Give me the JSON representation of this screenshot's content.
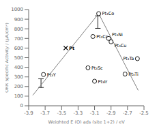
{
  "chart_data": {
    "type": "scatter",
    "xlabel": "Weighted E (O) ads (site 1+2) / eV",
    "ylabel": "ORR Specific Activity / (μA/cm²)",
    "xlim": [
      -3.9,
      -2.5
    ],
    "ylim": [
      0,
      1000
    ],
    "xticks": [
      -3.9,
      -3.7,
      -3.5,
      -3.3,
      -3.1,
      -2.9,
      -2.7,
      -2.5
    ],
    "yticks": [
      0,
      100,
      200,
      300,
      400,
      500,
      600,
      700,
      800,
      900,
      1000
    ],
    "series": [
      {
        "type": "line",
        "color": "gray",
        "x": [
          -3.85,
          -3.05
        ],
        "values": [
          110,
          958
        ]
      },
      {
        "type": "line",
        "color": "gray",
        "x": [
          -3.05,
          -2.57
        ],
        "values": [
          958,
          160
        ]
      },
      {
        "type": "error_bar",
        "color": "black",
        "x": [
          -3.75,
          -3.06
        ],
        "values": [
          235,
          870
        ],
        "error": [
          45,
          65
        ]
      },
      {
        "type": "scatter",
        "marker": "o",
        "color": "black",
        "x": [
          -3.72,
          -3.12,
          -3.05,
          -2.93,
          -2.9,
          -3.18,
          -3.1,
          -2.73,
          -2.58
        ],
        "values": [
          325,
          720,
          958,
          700,
          665,
          395,
          255,
          330,
          490
        ],
        "labels": [
          "Pt₃Y",
          "Pt₃Cr",
          "Pt₃Co",
          "Pt₃Ni",
          "Pt₃Cu",
          "Pt₃Sc",
          "Pt₃Ir",
          "Pt₃Ti",
          "Pt₃Ta"
        ]
      },
      {
        "type": "scatter",
        "marker": "x",
        "color": "black",
        "x": [
          -3.45
        ],
        "values": [
          600
        ],
        "labels": [
          "Pt"
        ]
      }
    ]
  }
}
